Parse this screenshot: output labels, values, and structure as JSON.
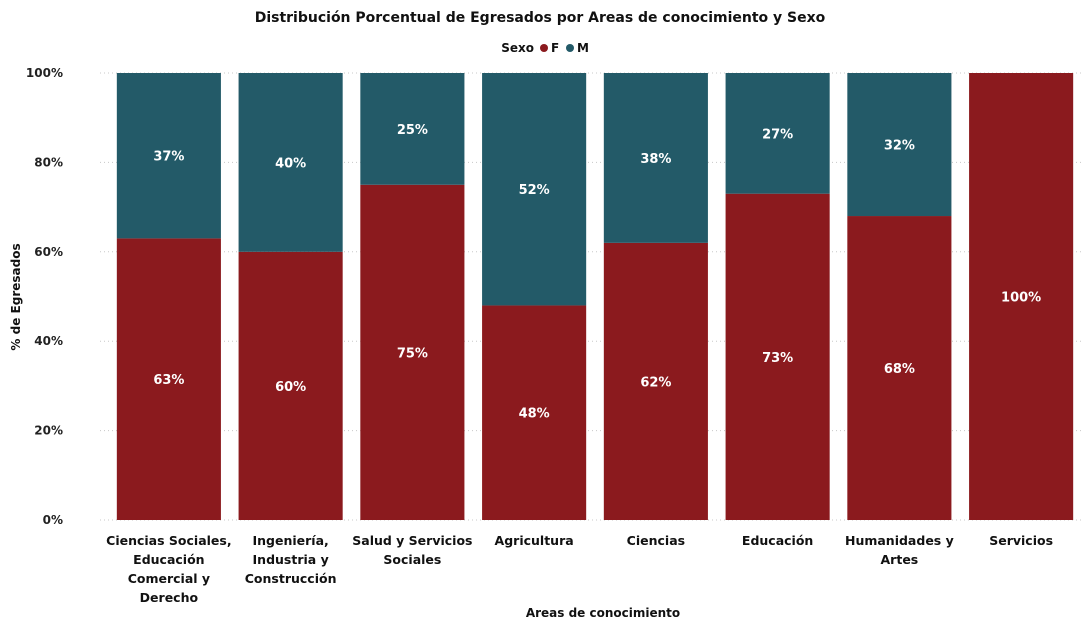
{
  "chart_data": {
    "type": "bar",
    "stacked": true,
    "title": "Distribución Porcentual de Egresados por Areas de conocimiento y Sexo",
    "legend_title": "Sexo",
    "xlabel": "Areas de conocimiento",
    "ylabel": "% de Egresados",
    "ylim": [
      0,
      100
    ],
    "yticks": [
      "0%",
      "20%",
      "40%",
      "60%",
      "80%",
      "100%"
    ],
    "grid": true,
    "legend_position": "top-center",
    "categories": [
      [
        "Ciencias Sociales,",
        "Educación",
        "Comercial y",
        "Derecho"
      ],
      [
        "Ingeniería,",
        "Industria y",
        "Construcción"
      ],
      [
        "Salud y Servicios",
        "Sociales"
      ],
      [
        "Agricultura"
      ],
      [
        "Ciencias"
      ],
      [
        "Educación"
      ],
      [
        "Humanidades y",
        "Artes"
      ],
      [
        "Servicios"
      ]
    ],
    "series": [
      {
        "name": "F",
        "color": "#8B1A1E",
        "values": [
          63,
          60,
          75,
          48,
          62,
          73,
          68,
          100
        ],
        "labels": [
          "63%",
          "60%",
          "75%",
          "48%",
          "62%",
          "73%",
          "68%",
          "100%"
        ]
      },
      {
        "name": "M",
        "color": "#235A68",
        "values": [
          37,
          40,
          25,
          52,
          38,
          27,
          32,
          0
        ],
        "labels": [
          "37%",
          "40%",
          "25%",
          "52%",
          "38%",
          "27%",
          "32%",
          ""
        ]
      }
    ]
  }
}
